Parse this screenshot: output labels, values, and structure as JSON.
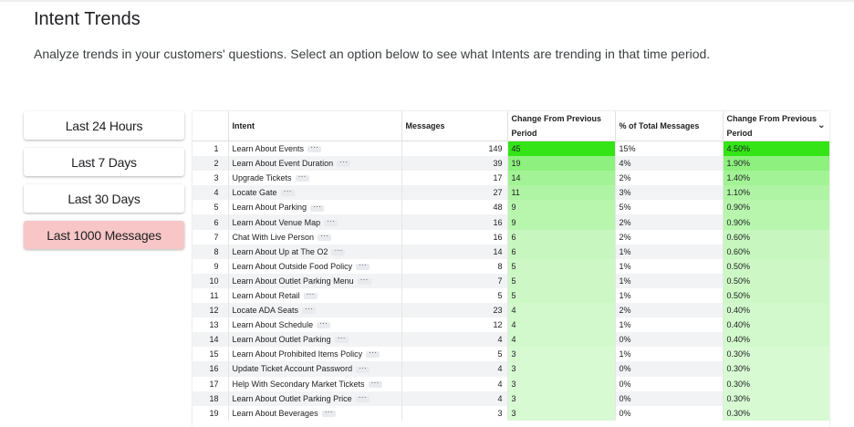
{
  "page": {
    "title": "Intent Trends",
    "subtitle": "Analyze trends in your customers' questions.  Select an option below to see what Intents are trending in that time period."
  },
  "periods": [
    {
      "label": "Last 24 Hours",
      "active": false
    },
    {
      "label": "Last 7 Days",
      "active": false
    },
    {
      "label": "Last 30 Days",
      "active": false
    },
    {
      "label": "Last 1000 Messages",
      "active": true
    }
  ],
  "table": {
    "headers": {
      "index": "",
      "intent": "Intent",
      "messages": "Messages",
      "change": "Change From Previous Period",
      "percent": "% of Total Messages",
      "change_pct": "Change From Previous Period"
    },
    "colors": {
      "max": "#34e417",
      "min": "#f1fdef"
    },
    "rows": [
      {
        "idx": "1",
        "intent": "Learn About Events",
        "messages": "149",
        "change": "45",
        "percent": "15%",
        "change_pct": "4.50%"
      },
      {
        "idx": "2",
        "intent": "Learn About Event Duration",
        "messages": "39",
        "change": "19",
        "percent": "4%",
        "change_pct": "1.90%"
      },
      {
        "idx": "3",
        "intent": "Upgrade Tickets",
        "messages": "17",
        "change": "14",
        "percent": "2%",
        "change_pct": "1.40%"
      },
      {
        "idx": "4",
        "intent": "Locate Gate",
        "messages": "27",
        "change": "11",
        "percent": "3%",
        "change_pct": "1.10%"
      },
      {
        "idx": "5",
        "intent": "Learn About Parking",
        "messages": "48",
        "change": "9",
        "percent": "5%",
        "change_pct": "0.90%"
      },
      {
        "idx": "6",
        "intent": "Learn About Venue Map",
        "messages": "16",
        "change": "9",
        "percent": "2%",
        "change_pct": "0.90%"
      },
      {
        "idx": "7",
        "intent": "Chat With Live Person",
        "messages": "16",
        "change": "6",
        "percent": "2%",
        "change_pct": "0.60%"
      },
      {
        "idx": "8",
        "intent": "Learn About Up at The O2",
        "messages": "14",
        "change": "6",
        "percent": "1%",
        "change_pct": "0.60%"
      },
      {
        "idx": "9",
        "intent": "Learn About Outside Food Policy",
        "messages": "8",
        "change": "5",
        "percent": "1%",
        "change_pct": "0.50%"
      },
      {
        "idx": "10",
        "intent": "Learn About Outlet Parking Menu",
        "messages": "7",
        "change": "5",
        "percent": "1%",
        "change_pct": "0.50%"
      },
      {
        "idx": "11",
        "intent": "Learn About Retail",
        "messages": "5",
        "change": "5",
        "percent": "1%",
        "change_pct": "0.50%"
      },
      {
        "idx": "12",
        "intent": "Locate ADA Seats",
        "messages": "23",
        "change": "4",
        "percent": "2%",
        "change_pct": "0.40%"
      },
      {
        "idx": "13",
        "intent": "Learn About Schedule",
        "messages": "12",
        "change": "4",
        "percent": "1%",
        "change_pct": "0.40%"
      },
      {
        "idx": "14",
        "intent": "Learn About Outlet Parking",
        "messages": "4",
        "change": "4",
        "percent": "0%",
        "change_pct": "0.40%"
      },
      {
        "idx": "15",
        "intent": "Learn About Prohibited Items Policy",
        "messages": "5",
        "change": "3",
        "percent": "1%",
        "change_pct": "0.30%"
      },
      {
        "idx": "16",
        "intent": "Update Ticket Account Password",
        "messages": "4",
        "change": "3",
        "percent": "0%",
        "change_pct": "0.30%"
      },
      {
        "idx": "17",
        "intent": "Help With Secondary Market Tickets",
        "messages": "4",
        "change": "3",
        "percent": "0%",
        "change_pct": "0.30%"
      },
      {
        "idx": "18",
        "intent": "Learn About Outlet Parking Price",
        "messages": "4",
        "change": "3",
        "percent": "0%",
        "change_pct": "0.30%"
      },
      {
        "idx": "19",
        "intent": "Learn About Beverages",
        "messages": "3",
        "change": "3",
        "percent": "0%",
        "change_pct": "0.30%"
      }
    ]
  }
}
